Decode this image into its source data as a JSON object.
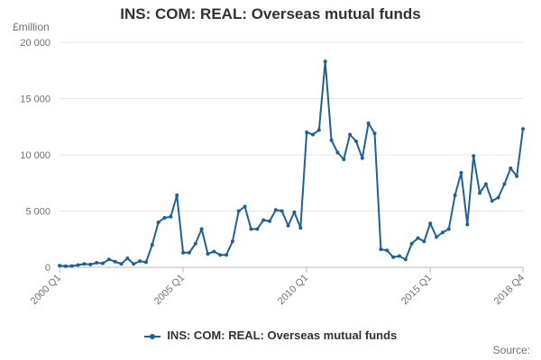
{
  "chart_data": {
    "type": "line",
    "title": "INS: COM: REAL: Overseas mutual funds",
    "ylabel": "£million",
    "ylim": [
      0,
      20000
    ],
    "yticks": [
      0,
      5000,
      10000,
      15000,
      20000
    ],
    "ytick_labels": [
      "0",
      "5 000",
      "10 000",
      "15 000",
      "20 000"
    ],
    "xtick_labels": [
      {
        "label": "2000 Q1",
        "index": 0
      },
      {
        "label": "2005 Q1",
        "index": 20
      },
      {
        "label": "2010 Q1",
        "index": 40
      },
      {
        "label": "2015 Q1",
        "index": 60
      },
      {
        "label": "2018 Q4",
        "index": 75
      }
    ],
    "grid": true,
    "legend_position": "bottom",
    "series": [
      {
        "name": "INS: COM: REAL: Overseas mutual funds",
        "color": "#206095",
        "x": [
          "2000 Q1",
          "2000 Q2",
          "2000 Q3",
          "2000 Q4",
          "2001 Q1",
          "2001 Q2",
          "2001 Q3",
          "2001 Q4",
          "2002 Q1",
          "2002 Q2",
          "2002 Q3",
          "2002 Q4",
          "2003 Q1",
          "2003 Q2",
          "2003 Q3",
          "2003 Q4",
          "2004 Q1",
          "2004 Q2",
          "2004 Q3",
          "2004 Q4",
          "2005 Q1",
          "2005 Q2",
          "2005 Q3",
          "2005 Q4",
          "2006 Q1",
          "2006 Q2",
          "2006 Q3",
          "2006 Q4",
          "2007 Q1",
          "2007 Q2",
          "2007 Q3",
          "2007 Q4",
          "2008 Q1",
          "2008 Q2",
          "2008 Q3",
          "2008 Q4",
          "2009 Q1",
          "2009 Q2",
          "2009 Q3",
          "2009 Q4",
          "2010 Q1",
          "2010 Q2",
          "2010 Q3",
          "2010 Q4",
          "2011 Q1",
          "2011 Q2",
          "2011 Q3",
          "2011 Q4",
          "2012 Q1",
          "2012 Q2",
          "2012 Q3",
          "2012 Q4",
          "2013 Q1",
          "2013 Q2",
          "2013 Q3",
          "2013 Q4",
          "2014 Q1",
          "2014 Q2",
          "2014 Q3",
          "2014 Q4",
          "2015 Q1",
          "2015 Q2",
          "2015 Q3",
          "2015 Q4",
          "2016 Q1",
          "2016 Q2",
          "2016 Q3",
          "2016 Q4",
          "2017 Q1",
          "2017 Q2",
          "2017 Q3",
          "2017 Q4",
          "2018 Q1",
          "2018 Q2",
          "2018 Q3",
          "2018 Q4"
        ],
        "values": [
          150,
          100,
          120,
          200,
          300,
          250,
          400,
          350,
          700,
          500,
          300,
          800,
          300,
          550,
          450,
          2000,
          4000,
          4400,
          4500,
          6400,
          1300,
          1300,
          2100,
          3400,
          1200,
          1400,
          1100,
          1100,
          2300,
          5000,
          5400,
          3400,
          3400,
          4200,
          4100,
          5100,
          5000,
          3700,
          4900,
          3500,
          12000,
          11800,
          12200,
          18300,
          11300,
          10200,
          9600,
          11800,
          11200,
          9700,
          12800,
          11900,
          1600,
          1500,
          900,
          1000,
          700,
          2100,
          2600,
          2300,
          3900,
          2700,
          3100,
          3400,
          6400,
          8400,
          3800,
          9900,
          6600,
          7400,
          5900,
          6200,
          7400,
          8800,
          8100,
          12300
        ]
      }
    ],
    "source_label": "Source:"
  }
}
